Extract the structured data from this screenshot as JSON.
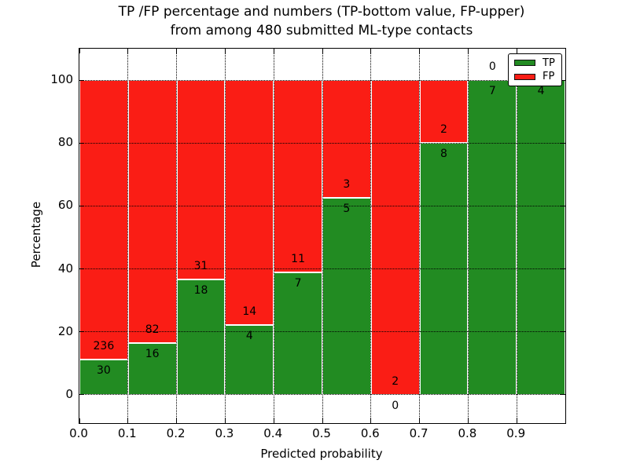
{
  "chart_data": {
    "type": "bar",
    "stacked": true,
    "title_lines": [
      "TP /FP percentage and numbers (TP-bottom value, FP-upper)",
      "from among 480 submitted ML-type contacts"
    ],
    "xlabel": "Predicted probability",
    "ylabel": "Percentage",
    "x_tick_labels": [
      "0.0",
      "0.1",
      "0.2",
      "0.3",
      "0.4",
      "0.5",
      "0.6",
      "0.7",
      "0.8",
      "0.9"
    ],
    "y_tick_values": [
      0,
      20,
      40,
      60,
      80,
      100
    ],
    "xlim": [
      0.0,
      1.0
    ],
    "ylim": [
      -9,
      110
    ],
    "grid": true,
    "bar_value_unit": "percent of bin total (TP share = green height)",
    "bins": [
      {
        "range": [
          0.0,
          0.1
        ],
        "tp": 30,
        "fp": 236
      },
      {
        "range": [
          0.1,
          0.2
        ],
        "tp": 16,
        "fp": 82
      },
      {
        "range": [
          0.2,
          0.3
        ],
        "tp": 18,
        "fp": 31
      },
      {
        "range": [
          0.3,
          0.4
        ],
        "tp": 4,
        "fp": 14
      },
      {
        "range": [
          0.4,
          0.5
        ],
        "tp": 7,
        "fp": 11
      },
      {
        "range": [
          0.5,
          0.6
        ],
        "tp": 5,
        "fp": 3
      },
      {
        "range": [
          0.6,
          0.7
        ],
        "tp": 0,
        "fp": 2
      },
      {
        "range": [
          0.7,
          0.8
        ],
        "tp": 8,
        "fp": 2
      },
      {
        "range": [
          0.8,
          0.9
        ],
        "tp": 7,
        "fp": 0
      },
      {
        "range": [
          0.9,
          1.0
        ],
        "tp": 4,
        "fp": 0
      }
    ],
    "colors": {
      "tp": "#228b22",
      "fp": "#fa1d15"
    },
    "legend": {
      "position": "upper right",
      "entries": [
        {
          "label": "TP",
          "key": "tp"
        },
        {
          "label": "FP",
          "key": "fp"
        }
      ]
    }
  }
}
